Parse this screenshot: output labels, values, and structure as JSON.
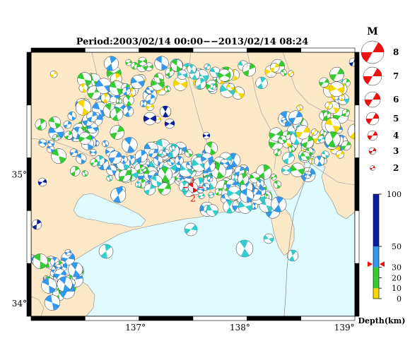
{
  "title": "Period:2003/02/14 00:00−−2013/02/14 08:24",
  "map": {
    "lon_range": [
      136.0,
      139.1
    ],
    "lat_range": [
      33.9,
      35.95
    ],
    "lon_ticks": [
      "137°",
      "138°",
      "139°"
    ],
    "lon_tick_values": [
      137,
      138,
      139
    ],
    "lat_ticks": [
      "35°",
      "34°"
    ],
    "lat_tick_values": [
      35,
      34
    ],
    "colors": {
      "land": "#fde9c8",
      "sea": "#dffbfd",
      "border": "#b0b0b0",
      "frame": "#000000"
    }
  },
  "magnitude_legend": {
    "title": "M",
    "levels": [
      "8",
      "7",
      "6",
      "5",
      "4",
      "3",
      "2"
    ],
    "color": "#ee1111"
  },
  "depth_scale": {
    "title": "Depth(km)",
    "ticks": [
      "100",
      "50",
      "30",
      "20",
      "10",
      "0"
    ],
    "tick_values": [
      100,
      50,
      30,
      20,
      10,
      0
    ],
    "bands": [
      {
        "from": 0,
        "to": 10,
        "color": "#f5d800"
      },
      {
        "from": 10,
        "to": 20,
        "color": "#33cc33"
      },
      {
        "from": 20,
        "to": 30,
        "color": "#33cc33"
      },
      {
        "from": 30,
        "to": 50,
        "color": "#3399ee"
      },
      {
        "from": 50,
        "to": 100,
        "color": "#0a1fa0"
      }
    ],
    "marker_depth": 33
  },
  "events": {
    "colors": {
      "shallow": "#f5d800",
      "green": "#33cc33",
      "blue": "#3399ee",
      "cyan": "#33cccc",
      "deep": "#0a1fa0"
    },
    "main_event": {
      "lon": 137.55,
      "lat": 34.9,
      "label": "2",
      "color": "#ee1111"
    }
  }
}
